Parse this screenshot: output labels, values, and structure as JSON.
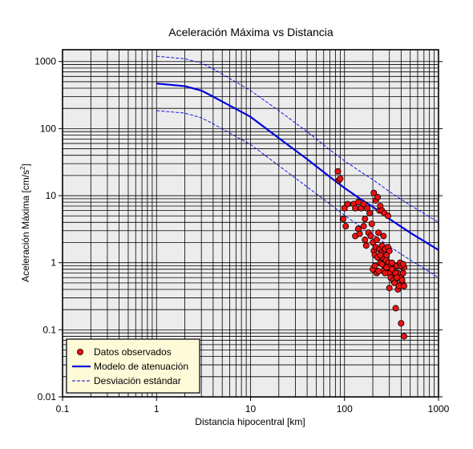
{
  "chart_data": {
    "type": "scatter",
    "title": "Aceleración Máxima vs Distancia",
    "xlabel": "Distancia hipocentral [km]",
    "ylabel": {
      "prefix": "Aceleración Máxima [cm/s",
      "sup": "2",
      "suffix": "]"
    },
    "xscale": "log",
    "yscale": "log",
    "xlim": [
      0.1,
      1000
    ],
    "ylim": [
      0.01,
      1500
    ],
    "grid": true,
    "plot_background": "#ececec",
    "legend_background": "#fffbd8",
    "legend_position": "bottom-left",
    "x_ticks": [
      {
        "value": 0.1,
        "label": "0.1"
      },
      {
        "value": 1,
        "label": "1"
      },
      {
        "value": 10,
        "label": "10"
      },
      {
        "value": 100,
        "label": "100"
      },
      {
        "value": 1000,
        "label": "1000"
      }
    ],
    "y_ticks": [
      {
        "value": 0.01,
        "label": "0.01"
      },
      {
        "value": 0.1,
        "label": "0.1"
      },
      {
        "value": 1,
        "label": "1"
      },
      {
        "value": 10,
        "label": "10"
      },
      {
        "value": 100,
        "label": "100"
      },
      {
        "value": 1000,
        "label": "1000"
      }
    ],
    "legend": [
      {
        "label": "Datos observados",
        "kind": "marker",
        "color": "#ee1111"
      },
      {
        "label": "Modelo de atenuación",
        "kind": "line",
        "color": "#0000dd"
      },
      {
        "label": "Desviación estándar",
        "kind": "dashed",
        "color": "#0000dd"
      }
    ],
    "series": [
      {
        "name": "Modelo de atenuación",
        "color": "#0000dd",
        "style": "solid",
        "x": [
          1,
          2,
          3,
          4,
          6,
          10,
          20,
          40,
          70,
          100,
          150,
          200,
          300,
          500,
          700,
          1000
        ],
        "y": [
          470,
          430,
          370,
          300,
          220,
          150,
          72,
          35,
          19,
          13,
          8.8,
          6.8,
          4.5,
          2.8,
          2.1,
          1.55
        ]
      },
      {
        "name": "Desviación estándar",
        "color": "#0000dd",
        "style": "dashed",
        "x": [
          1,
          2,
          3,
          4,
          6,
          10,
          20,
          40,
          70,
          100,
          150,
          200,
          300,
          500,
          700,
          1000
        ],
        "y": [
          1200,
          1100,
          950,
          780,
          560,
          370,
          185,
          90,
          48,
          33,
          22.5,
          17.4,
          11.5,
          7.2,
          5.4,
          4
        ]
      },
      {
        "name": "Desviación estándar",
        "color": "#0000dd",
        "style": "dashed",
        "x": [
          1,
          2,
          3,
          4,
          6,
          10,
          20,
          40,
          70,
          100,
          150,
          200,
          300,
          500,
          700,
          1000
        ],
        "y": [
          185,
          170,
          145,
          118,
          86,
          58,
          28,
          13.5,
          7.5,
          5.1,
          3.4,
          2.65,
          1.75,
          1.1,
          0.82,
          0.6
        ]
      },
      {
        "name": "Datos observados",
        "color": "#ee1111",
        "style": "marker",
        "x": [
          85,
          87,
          90,
          97,
          100,
          103,
          108,
          125,
          130,
          140,
          150,
          160,
          165,
          175,
          185,
          205,
          215,
          225,
          235,
          240,
          250,
          265,
          290,
          130,
          140,
          145,
          160,
          165,
          170,
          180,
          190,
          195,
          200,
          205,
          210,
          215,
          220,
          225,
          230,
          235,
          240,
          245,
          250,
          255,
          260,
          265,
          270,
          275,
          280,
          285,
          290,
          295,
          300,
          310,
          320,
          330,
          340,
          350,
          360,
          370,
          380,
          390,
          400,
          410,
          420,
          430,
          260,
          200,
          210,
          220,
          230,
          240,
          250,
          270,
          280,
          300,
          310,
          320,
          330,
          340,
          350,
          360,
          370,
          380,
          390,
          400,
          410,
          420,
          430,
          300,
          350,
          400,
          430
        ],
        "y": [
          23,
          17,
          18,
          4.5,
          6.5,
          3.5,
          7.5,
          7.5,
          6.5,
          8,
          6.5,
          7.5,
          4.5,
          6.5,
          5.5,
          11,
          8.5,
          9.5,
          6,
          7,
          6,
          5.5,
          5,
          2.5,
          3.2,
          2.7,
          3.5,
          2.2,
          1.8,
          2.8,
          2.5,
          3.8,
          2.0,
          1.5,
          1.3,
          1.7,
          2.2,
          1.2,
          2.8,
          1.6,
          1.0,
          1.4,
          1.8,
          1.2,
          2.5,
          0.9,
          1.6,
          1.1,
          1.3,
          0.8,
          1.7,
          1.0,
          0.7,
          0.9,
          1.0,
          0.8,
          0.65,
          0.55,
          0.9,
          0.7,
          0.45,
          1.0,
          0.6,
          0.5,
          0.7,
          0.85,
          0.75,
          0.8,
          0.9,
          0.7,
          0.75,
          1.3,
          0.95,
          0.7,
          0.85,
          1.5,
          0.6,
          0.8,
          0.55,
          0.5,
          0.7,
          0.6,
          0.4,
          0.45,
          1.0,
          0.9,
          0.55,
          0.95,
          0.45,
          0.42,
          0.21,
          0.125,
          0.08
        ]
      }
    ]
  }
}
